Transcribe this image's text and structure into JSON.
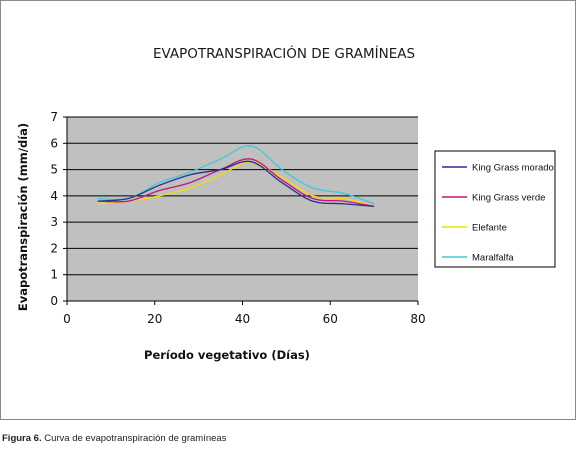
{
  "chart_data": {
    "type": "line",
    "title": "EVAPOTRANSPIRACIÓN DE GRAMÍNEAS",
    "xlabel": "Período vegetativo (Días)",
    "ylabel": "Evapotranspiración (mm/día)",
    "xlim": [
      0,
      80
    ],
    "ylim": [
      0,
      7
    ],
    "xticks": [
      0,
      20,
      40,
      60,
      80
    ],
    "yticks": [
      0,
      1,
      2,
      3,
      4,
      5,
      6,
      7
    ],
    "grid": true,
    "legend_position": "right",
    "plot_background": "#c0c0c0",
    "series": [
      {
        "name": "King Grass morado",
        "color": "#2b2f8f",
        "x": [
          7,
          14,
          21,
          28,
          35,
          42,
          49,
          56,
          63,
          70
        ],
        "y": [
          3.8,
          3.9,
          4.4,
          4.8,
          5.0,
          5.3,
          4.5,
          3.8,
          3.7,
          3.6
        ]
      },
      {
        "name": "King Grass verde",
        "color": "#c2187a",
        "x": [
          7,
          14,
          21,
          28,
          35,
          42,
          49,
          56,
          63,
          70
        ],
        "y": [
          3.8,
          3.8,
          4.2,
          4.5,
          5.0,
          5.4,
          4.6,
          3.9,
          3.8,
          3.6
        ]
      },
      {
        "name": "Elefante",
        "color": "#f0e000",
        "x": [
          7,
          14,
          21,
          28,
          35,
          42,
          49,
          56,
          63,
          70
        ],
        "y": [
          3.7,
          3.8,
          4.0,
          4.3,
          4.8,
          5.3,
          4.7,
          4.0,
          3.9,
          3.6
        ]
      },
      {
        "name": "Maralfalfa",
        "color": "#40c8d8",
        "x": [
          7,
          14,
          21,
          28,
          35,
          42,
          49,
          56,
          63,
          70
        ],
        "y": [
          3.9,
          3.9,
          4.5,
          4.9,
          5.4,
          5.9,
          5.0,
          4.3,
          4.1,
          3.7
        ]
      }
    ]
  },
  "caption": {
    "label": "Figura 6.",
    "text": " Curva de evapotranspiración de gramíneas"
  }
}
